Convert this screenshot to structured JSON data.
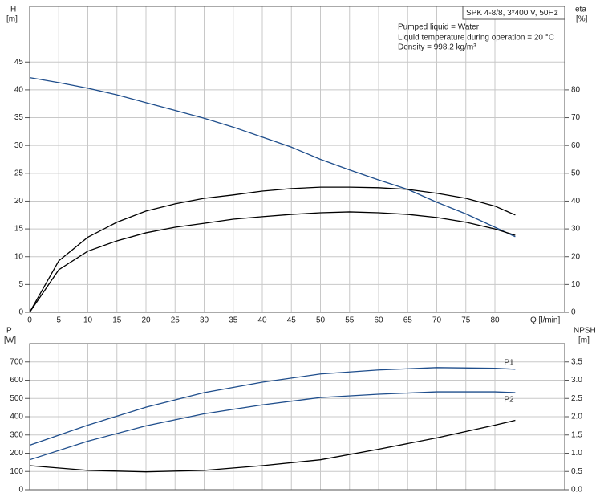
{
  "chart_data": [
    {
      "type": "line",
      "title": "SPK 4-8/8, 3*400 V, 50Hz",
      "annotations": [
        "Pumped liquid = Water",
        "Liquid temperature during operation = 20 °C",
        "Density = 998.2 kg/m³"
      ],
      "ylabel": "H",
      "yunit": "[m]",
      "y2label": "eta",
      "y2unit": "[%]",
      "xlabel": "Q [l/min]",
      "x": [
        0,
        5,
        10,
        15,
        20,
        25,
        30,
        35,
        40,
        45,
        50,
        55,
        60,
        65,
        70,
        75,
        80,
        83.5
      ],
      "xlim": [
        0,
        92
      ],
      "xticks": [
        0,
        5,
        10,
        15,
        20,
        25,
        30,
        35,
        40,
        45,
        50,
        55,
        60,
        65,
        70,
        75,
        80
      ],
      "ylim": [
        0,
        55
      ],
      "yticks": [
        0,
        5,
        10,
        15,
        20,
        25,
        30,
        35,
        40,
        45
      ],
      "y2lim": [
        0,
        110
      ],
      "y2ticks": [
        0,
        10,
        20,
        30,
        40,
        50,
        60,
        70,
        80
      ],
      "grid": true,
      "series": [
        {
          "color": "#1f4e8c",
          "values": [
            42.2,
            41.3,
            40.3,
            39.1,
            37.7,
            36.3,
            34.9,
            33.3,
            31.5,
            29.7,
            27.5,
            25.6,
            23.8,
            22.1,
            19.8,
            17.7,
            15.3,
            13.6
          ]
        },
        {
          "color": "#000000",
          "axis": "y2",
          "values": [
            0,
            18.5,
            27,
            32.4,
            36.4,
            39,
            41,
            42.2,
            43.6,
            44.5,
            45,
            45,
            44.8,
            44.2,
            42.8,
            41,
            38.2,
            35
          ]
        },
        {
          "color": "#000000",
          "axis": "y2",
          "values": [
            0,
            15.3,
            22,
            25.7,
            28.6,
            30.6,
            32,
            33.5,
            34.4,
            35.2,
            35.8,
            36.1,
            35.8,
            35.2,
            34.1,
            32.4,
            30,
            27.7
          ]
        }
      ]
    },
    {
      "type": "line",
      "ylabel": "P",
      "yunit": "[W]",
      "y2label": "NPSH",
      "y2unit": "[m]",
      "x": [
        0,
        10,
        20,
        30,
        40,
        50,
        60,
        70,
        80,
        83.5
      ],
      "xlim": [
        0,
        92
      ],
      "xticks": [
        0,
        5,
        10,
        15,
        20,
        25,
        30,
        35,
        40,
        45,
        50,
        55,
        60,
        65,
        70,
        75,
        80
      ],
      "ylim": [
        0,
        800
      ],
      "yticks": [
        0,
        100,
        200,
        300,
        400,
        500,
        600,
        700
      ],
      "y2lim": [
        0,
        4
      ],
      "y2ticks": [
        {
          "value": 0,
          "label": "0.0"
        },
        0.5,
        {
          "value": 1,
          "label": "1.0"
        },
        1.5,
        {
          "value": 2,
          "label": "2.0"
        },
        2.5,
        {
          "value": 3,
          "label": "3.0"
        },
        3.5
      ],
      "grid": true,
      "series": [
        {
          "name": "P1",
          "color": "#1f4e8c",
          "values": [
            244,
            354,
            452,
            532,
            589,
            634,
            656,
            669,
            665,
            660
          ]
        },
        {
          "name": "P2",
          "color": "#1f4e8c",
          "values": [
            164,
            266,
            350,
            416,
            465,
            505,
            523,
            536,
            536,
            532
          ]
        },
        {
          "color": "#000000",
          "axis": "y2",
          "values": [
            0.66,
            0.53,
            0.49,
            0.53,
            0.66,
            0.82,
            1.11,
            1.42,
            1.77,
            1.9
          ]
        }
      ]
    }
  ]
}
